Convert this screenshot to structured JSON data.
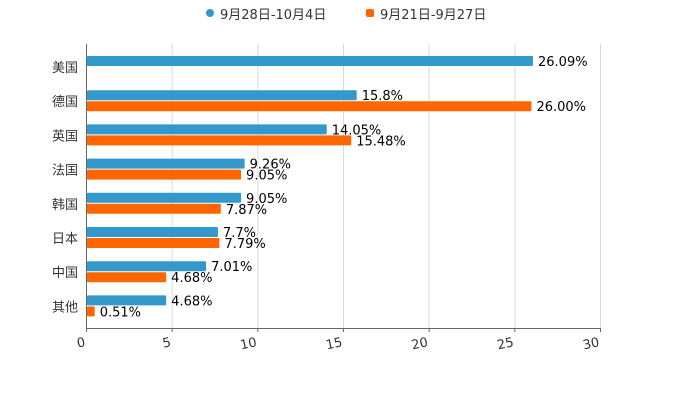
{
  "chart_data": {
    "type": "bar",
    "orientation": "horizontal",
    "categories": [
      "美国",
      "德国",
      "英国",
      "法国",
      "韩国",
      "日本",
      "中国",
      "其他"
    ],
    "series": [
      {
        "name": "9月28日-10月4日",
        "color": "#3399cc",
        "values": [
          26.09,
          15.8,
          14.05,
          9.26,
          9.05,
          7.7,
          7.01,
          4.68
        ],
        "labels": [
          "26.09%",
          "15.8%",
          "14.05%",
          "9.26%",
          "9.05%",
          "7.7%",
          "7.01%",
          "4.68%"
        ]
      },
      {
        "name": "9月21日-9月27日",
        "color": "#ff6600",
        "values": [
          null,
          26.0,
          15.48,
          9.05,
          7.87,
          7.79,
          4.68,
          0.51
        ],
        "labels": [
          "",
          "26.00%",
          "15.48%",
          "9.05%",
          "7.87%",
          "7.79%",
          "4.68%",
          "0.51%"
        ]
      }
    ],
    "xlim": [
      0,
      30
    ],
    "xticks": [
      0,
      5,
      10,
      15,
      20,
      25,
      30
    ],
    "xtick_labels": [
      "0",
      "5",
      "10",
      "15",
      "20",
      "25",
      "30"
    ],
    "grid": true,
    "legend_position": "top-center"
  }
}
